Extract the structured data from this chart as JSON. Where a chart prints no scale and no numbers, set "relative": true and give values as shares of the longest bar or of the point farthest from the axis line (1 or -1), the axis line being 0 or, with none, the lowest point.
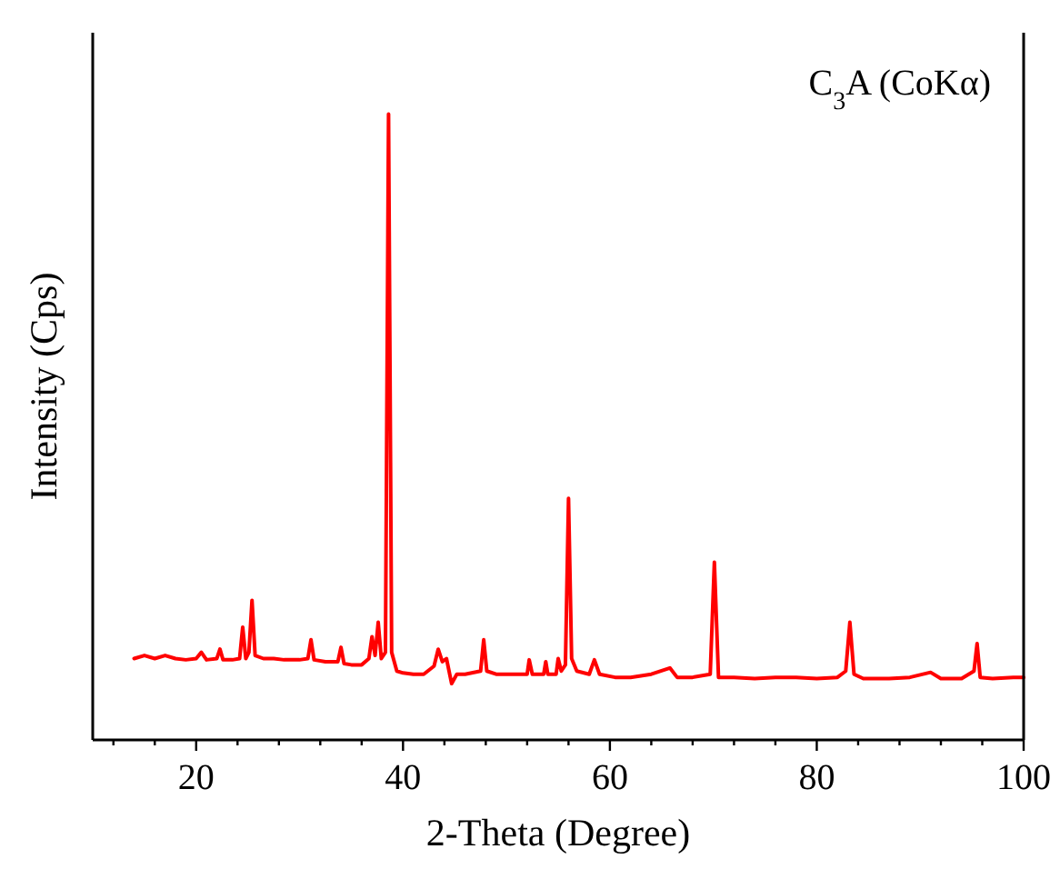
{
  "chart_data": {
    "type": "line",
    "relative": true,
    "xlabel": "2-Theta (Degree)",
    "ylabel": "Intensity (Cps)",
    "annotations": [
      "C$_{3}$A (CoKα)"
    ],
    "xlim": [
      10,
      100
    ],
    "xticks": [
      {
        "value": 12,
        "label": null
      },
      {
        "value": 16,
        "label": null
      },
      20,
      {
        "value": 24,
        "label": null
      },
      {
        "value": 28,
        "label": null
      },
      {
        "value": 32,
        "label": null
      },
      {
        "value": 36,
        "label": null
      },
      40,
      {
        "value": 44,
        "label": null
      },
      {
        "value": 48,
        "label": null
      },
      {
        "value": 52,
        "label": null
      },
      {
        "value": 56,
        "label": null
      },
      60,
      {
        "value": 64,
        "label": null
      },
      {
        "value": 68,
        "label": null
      },
      {
        "value": 72,
        "label": null
      },
      {
        "value": 76,
        "label": null
      },
      80,
      {
        "value": 84,
        "label": null
      },
      {
        "value": 88,
        "label": null
      },
      {
        "value": 92,
        "label": null
      },
      {
        "value": 96,
        "label": null
      },
      100
    ],
    "grid": false,
    "line_style": "solid",
    "series": [
      {
        "color": "#ff0000",
        "x": [
          14.0,
          15.0,
          16.0,
          17.0,
          18.0,
          19.0,
          20.0,
          20.5,
          21.0,
          22.0,
          22.3,
          22.6,
          23.5,
          24.2,
          24.5,
          24.8,
          25.1,
          25.4,
          25.7,
          26.5,
          27.5,
          28.5,
          30.0,
          30.8,
          31.1,
          31.4,
          32.5,
          33.7,
          34.0,
          34.3,
          35.0,
          36.0,
          36.7,
          37.0,
          37.3,
          37.6,
          37.9,
          38.3,
          38.6,
          38.9,
          39.4,
          40.0,
          41.0,
          42.0,
          43.0,
          43.4,
          43.8,
          44.2,
          44.7,
          45.2,
          46.0,
          47.5,
          47.8,
          48.1,
          49.0,
          50.5,
          52.0,
          52.2,
          52.5,
          53.6,
          53.8,
          54.0,
          54.8,
          55.0,
          55.3,
          55.7,
          56.0,
          56.3,
          56.8,
          58.0,
          58.5,
          59.0,
          60.5,
          62.0,
          64.0,
          65.8,
          66.5,
          68.0,
          69.7,
          70.1,
          70.5,
          72.0,
          74.0,
          76.0,
          78.0,
          80.0,
          82.0,
          82.8,
          83.2,
          83.6,
          84.5,
          87.0,
          89.0,
          91.0,
          92.0,
          94.0,
          95.2,
          95.5,
          95.8,
          97.0,
          99.0,
          100.0
        ],
        "values": [
          0.13,
          0.135,
          0.13,
          0.135,
          0.13,
          0.128,
          0.13,
          0.14,
          0.128,
          0.13,
          0.145,
          0.128,
          0.128,
          0.13,
          0.18,
          0.13,
          0.14,
          0.223,
          0.135,
          0.13,
          0.13,
          0.128,
          0.128,
          0.13,
          0.16,
          0.128,
          0.125,
          0.125,
          0.148,
          0.122,
          0.12,
          0.12,
          0.13,
          0.165,
          0.135,
          0.188,
          0.13,
          0.14,
          1.0,
          0.14,
          0.11,
          0.107,
          0.105,
          0.105,
          0.118,
          0.145,
          0.125,
          0.13,
          0.09,
          0.105,
          0.105,
          0.11,
          0.16,
          0.11,
          0.105,
          0.105,
          0.105,
          0.128,
          0.105,
          0.105,
          0.125,
          0.105,
          0.105,
          0.13,
          0.11,
          0.12,
          0.386,
          0.13,
          0.11,
          0.105,
          0.128,
          0.105,
          0.1,
          0.1,
          0.105,
          0.115,
          0.1,
          0.1,
          0.105,
          0.284,
          0.1,
          0.1,
          0.098,
          0.1,
          0.1,
          0.098,
          0.1,
          0.11,
          0.188,
          0.105,
          0.098,
          0.098,
          0.1,
          0.108,
          0.098,
          0.098,
          0.11,
          0.154,
          0.1,
          0.098,
          0.1,
          0.1
        ]
      }
    ]
  }
}
